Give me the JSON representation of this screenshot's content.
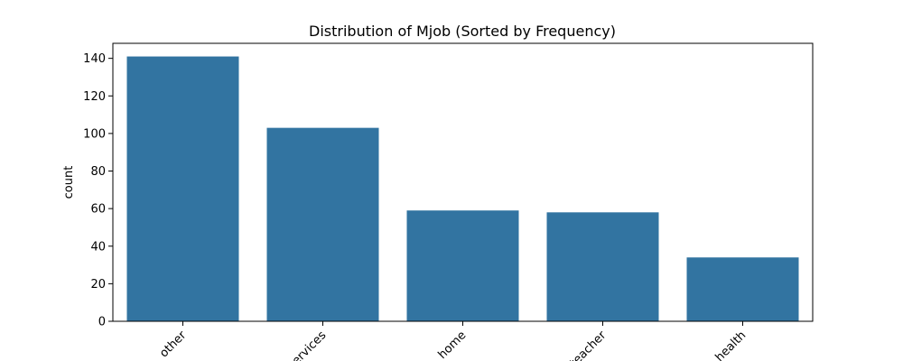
{
  "chart_data": {
    "type": "bar",
    "title": "Distribution of Mjob (Sorted by Frequency)",
    "xlabel": "",
    "ylabel": "count",
    "categories": [
      "other",
      "services",
      "home",
      "teacher",
      "health"
    ],
    "values": [
      141,
      103,
      59,
      58,
      34
    ],
    "ylim": [
      0,
      148
    ],
    "yticks": [
      0,
      20,
      40,
      60,
      80,
      100,
      120,
      140
    ],
    "x_tick_rotation_deg": 45,
    "grid": false,
    "legend": "none",
    "bar_color": "#3274a1"
  }
}
